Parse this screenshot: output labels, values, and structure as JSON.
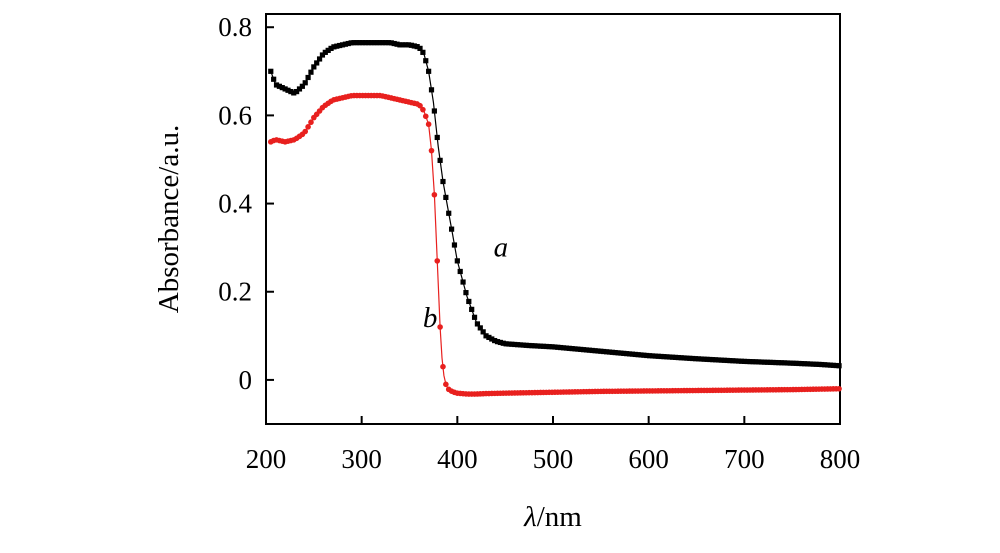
{
  "chart_data": {
    "type": "line",
    "title": "",
    "xlabel_symbol": "λ",
    "xlabel_unit": "/nm",
    "ylabel": "Absorbance/a.u.",
    "xlim": [
      200,
      800
    ],
    "ylim": [
      -0.1,
      0.83
    ],
    "grid": false,
    "x_ticks": [
      200,
      300,
      400,
      500,
      600,
      700,
      800
    ],
    "x_tick_labels": [
      "200",
      "300",
      "400",
      "500",
      "600",
      "700",
      "800"
    ],
    "y_ticks": [
      0,
      0.2,
      0.4,
      0.6,
      0.8
    ],
    "y_tick_labels": [
      "0",
      "0.2",
      "0.4",
      "0.6",
      "0.8"
    ],
    "series": [
      {
        "name": "a",
        "color": "#000000",
        "marker": "square",
        "x": [
          205,
          210,
          220,
          230,
          240,
          250,
          260,
          270,
          280,
          290,
          300,
          310,
          320,
          330,
          340,
          350,
          360,
          365,
          370,
          375,
          380,
          385,
          390,
          395,
          400,
          410,
          420,
          430,
          440,
          450,
          475,
          500,
          550,
          600,
          650,
          700,
          750,
          780,
          800
        ],
        "y": [
          0.7,
          0.67,
          0.66,
          0.65,
          0.67,
          0.71,
          0.74,
          0.755,
          0.76,
          0.765,
          0.765,
          0.765,
          0.765,
          0.765,
          0.76,
          0.76,
          0.755,
          0.74,
          0.7,
          0.63,
          0.53,
          0.45,
          0.39,
          0.33,
          0.27,
          0.19,
          0.13,
          0.1,
          0.088,
          0.082,
          0.078,
          0.075,
          0.065,
          0.055,
          0.048,
          0.042,
          0.038,
          0.035,
          0.032
        ]
      },
      {
        "name": "b",
        "color": "#e8201e",
        "marker": "circle",
        "x": [
          205,
          210,
          220,
          230,
          240,
          250,
          260,
          270,
          280,
          290,
          300,
          310,
          320,
          330,
          340,
          350,
          360,
          365,
          370,
          373,
          376,
          378,
          380,
          382,
          384,
          386,
          388,
          390,
          395,
          400,
          410,
          420,
          430,
          450,
          500,
          550,
          600,
          650,
          700,
          750,
          800
        ],
        "y": [
          0.54,
          0.545,
          0.54,
          0.545,
          0.56,
          0.595,
          0.62,
          0.635,
          0.64,
          0.645,
          0.645,
          0.645,
          0.645,
          0.64,
          0.635,
          0.63,
          0.625,
          0.61,
          0.58,
          0.52,
          0.42,
          0.32,
          0.22,
          0.12,
          0.05,
          0.01,
          -0.01,
          -0.02,
          -0.027,
          -0.03,
          -0.032,
          -0.032,
          -0.031,
          -0.03,
          -0.028,
          -0.026,
          -0.025,
          -0.024,
          -0.023,
          -0.022,
          -0.02
        ]
      }
    ],
    "annotations": [
      {
        "text": "a",
        "series": "a",
        "x": 438,
        "y": 0.28
      },
      {
        "text": "b",
        "series": "b",
        "x": 364,
        "y": 0.12
      }
    ]
  }
}
